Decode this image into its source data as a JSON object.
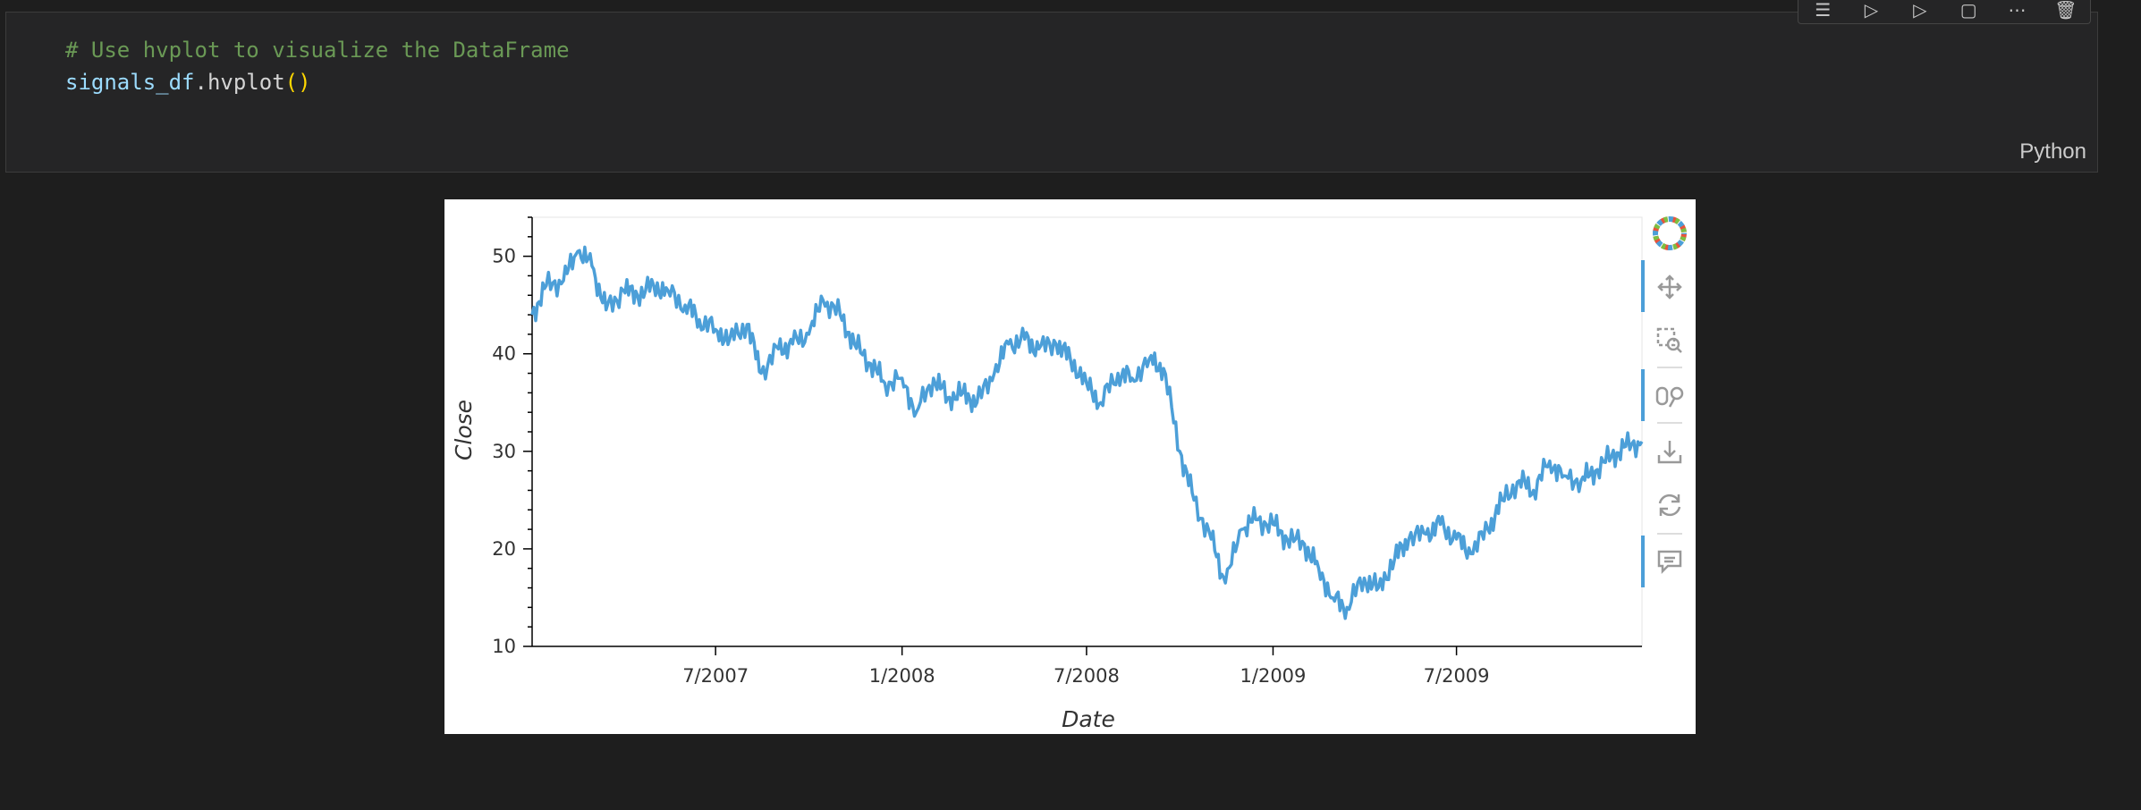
{
  "cell": {
    "code_line1": "# Use hvplot to visualize the DataFrame",
    "code_var": "signals_df",
    "code_dot_call": ".hvplot",
    "code_parens": "()",
    "language": "Python",
    "toolbar_icons": [
      "run-by-line-icon",
      "execute-above-icon",
      "execute-below-icon",
      "split-cell-icon",
      "more-icon",
      "delete-icon"
    ]
  },
  "chart_data": {
    "type": "line",
    "xlabel": "Date",
    "ylabel": "Close",
    "x_ticks": [
      "7/2007",
      "1/2008",
      "7/2008",
      "1/2009",
      "7/2009"
    ],
    "y_ticks": [
      10,
      20,
      30,
      40,
      50
    ],
    "ylim": [
      10,
      54
    ],
    "xlim": [
      "2007-01-01",
      "2009-12-31"
    ],
    "series": [
      {
        "color": "#4c9fd8",
        "x": [
          "2007-01-01",
          "2007-01-15",
          "2007-02-01",
          "2007-02-15",
          "2007-03-01",
          "2007-03-15",
          "2007-04-01",
          "2007-04-15",
          "2007-05-01",
          "2007-05-15",
          "2007-06-01",
          "2007-06-15",
          "2007-07-01",
          "2007-07-15",
          "2007-08-01",
          "2007-08-15",
          "2007-09-01",
          "2007-09-15",
          "2007-10-01",
          "2007-10-15",
          "2007-11-01",
          "2007-11-15",
          "2007-12-01",
          "2007-12-15",
          "2008-01-01",
          "2008-01-15",
          "2008-02-01",
          "2008-02-15",
          "2008-03-01",
          "2008-03-15",
          "2008-04-01",
          "2008-04-15",
          "2008-05-01",
          "2008-05-15",
          "2008-06-01",
          "2008-06-15",
          "2008-07-01",
          "2008-07-15",
          "2008-08-01",
          "2008-08-15",
          "2008-09-01",
          "2008-09-15",
          "2008-10-01",
          "2008-10-15",
          "2008-11-01",
          "2008-11-15",
          "2008-12-01",
          "2008-12-15",
          "2009-01-01",
          "2009-01-15",
          "2009-02-01",
          "2009-02-15",
          "2009-03-01",
          "2009-03-15",
          "2009-04-01",
          "2009-04-15",
          "2009-05-01",
          "2009-05-15",
          "2009-06-01",
          "2009-06-15",
          "2009-07-01",
          "2009-07-15",
          "2009-08-01",
          "2009-08-15",
          "2009-09-01",
          "2009-09-15",
          "2009-10-01",
          "2009-10-15",
          "2009-11-01",
          "2009-11-15",
          "2009-12-01",
          "2009-12-15",
          "2009-12-31"
        ],
        "values": [
          44,
          47,
          47.5,
          50.5,
          49,
          44.5,
          46.5,
          46,
          47,
          46.5,
          45,
          43.5,
          42.5,
          41.5,
          43,
          38,
          40.5,
          41,
          42,
          45.5,
          44,
          41,
          39,
          37,
          37.5,
          34,
          37.5,
          35.5,
          36,
          35,
          38,
          41,
          41.5,
          40.5,
          41,
          39.5,
          37,
          35,
          38,
          37.5,
          39.5,
          38.5,
          30,
          25,
          21,
          16.5,
          22,
          23,
          22.5,
          21,
          20.5,
          18,
          15,
          14,
          17,
          16,
          19,
          21,
          21.5,
          22.5,
          21,
          19.5,
          22,
          25,
          27,
          26,
          29,
          27.5,
          27,
          28,
          29.5,
          30.5,
          31
        ]
      }
    ]
  }
}
